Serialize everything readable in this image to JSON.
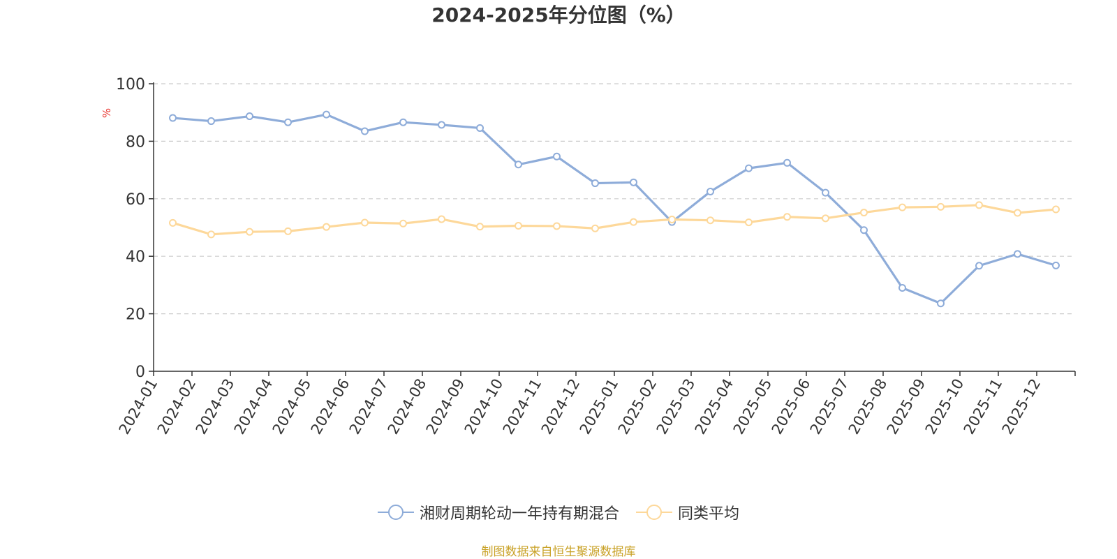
{
  "chart_data": {
    "type": "line",
    "title": "2024-2025年分位图（%）",
    "ylabel": "%",
    "xlabel": "",
    "ylim": [
      0,
      100
    ],
    "yticks": [
      0,
      20,
      40,
      60,
      80,
      100
    ],
    "grid": true,
    "legend_position": "bottom",
    "categories": [
      "2024-01",
      "2024-02",
      "2024-03",
      "2024-04",
      "2024-05",
      "2024-06",
      "2024-07",
      "2024-08",
      "2024-09",
      "2024-10",
      "2024-11",
      "2024-12",
      "2025-01",
      "2025-02",
      "2025-03",
      "2025-04",
      "2025-05",
      "2025-06",
      "2025-07",
      "2025-08",
      "2025-09",
      "2025-10",
      "2025-11",
      "2025-12"
    ],
    "series": [
      {
        "name": "湘财周期轮动一年持有期混合",
        "color": "#8eacd9",
        "values": [
          88.1,
          87.0,
          88.7,
          86.6,
          89.3,
          83.5,
          86.6,
          85.7,
          84.6,
          71.9,
          74.7,
          65.4,
          65.7,
          51.9,
          62.5,
          70.6,
          72.5,
          62.1,
          49.1,
          29.0,
          23.6,
          36.7,
          40.8,
          36.8
        ]
      },
      {
        "name": "同类平均",
        "color": "#fdd89a",
        "values": [
          51.6,
          47.6,
          48.5,
          48.7,
          50.2,
          51.7,
          51.4,
          52.9,
          50.3,
          50.6,
          50.5,
          49.7,
          51.9,
          52.8,
          52.5,
          51.8,
          53.7,
          53.2,
          55.2,
          57.0,
          57.2,
          57.8,
          55.1,
          56.3
        ]
      }
    ]
  },
  "source_note": "制图数据来自恒生聚源数据库",
  "colors": {
    "axis": "#333333",
    "grid": "#cccccc",
    "ylabel": "#e8302a",
    "source": "#c9a227"
  }
}
